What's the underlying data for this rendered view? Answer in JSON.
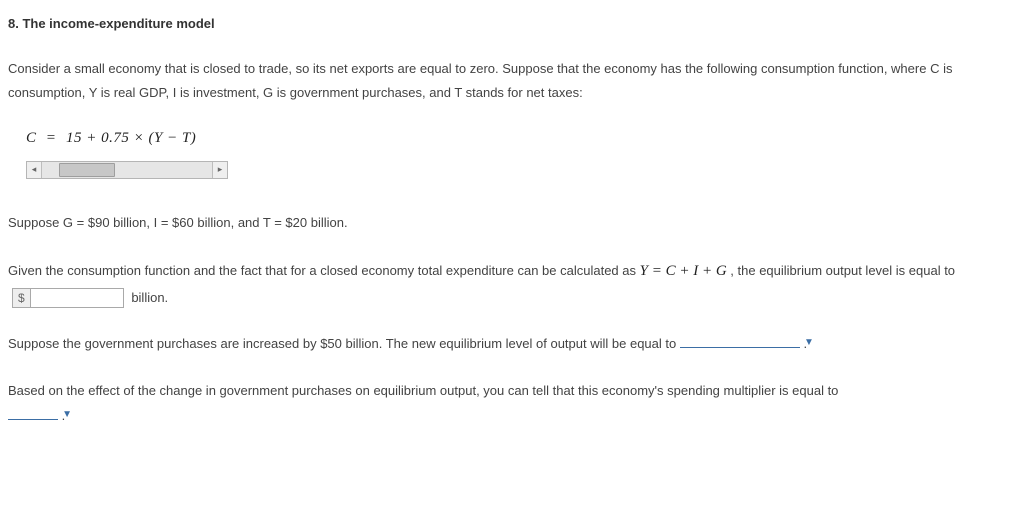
{
  "heading": "8. The income-expenditure model",
  "intro1": "Consider a small economy that is closed to trade, so its net exports are equal to zero. Suppose that the economy has the following consumption function, where C is consumption, Y is real GDP, I is investment, G is government purchases, and T stands for net taxes:",
  "equation": {
    "lhs": "C",
    "eq": "=",
    "rhs": "15 + 0.75 × (Y − T)"
  },
  "scrollbar": {
    "thumb_left_pct": 10,
    "thumb_width_pct": 32,
    "left_glyph": "◂",
    "right_glyph": "▸"
  },
  "given": "Suppose G = $90 billion, I = $60 billion, and T = $20 billion.",
  "p2_a": "Given the consumption function and the fact that for a closed economy total expenditure can be calculated as ",
  "p2_math": "Y = C + I + G",
  "p2_b": ", the equilibrium output level is equal to ",
  "p2_c": " billion.",
  "input": {
    "prefix": "$",
    "value": ""
  },
  "p3_a": "Suppose the government purchases are increased by $50 billion. The new equilibrium level of output will be equal to ",
  "p3_b": " .",
  "p4_a": "Based on the effect of the change in government purchases on equilibrium output, you can tell that this economy's spending multiplier is equal to",
  "p4_b": " .",
  "colors": {
    "text": "#434343",
    "link": "#3b6ea5",
    "border": "#a9a9a9",
    "thumb": "#c7c7c7",
    "track": "#e6e6e6"
  }
}
